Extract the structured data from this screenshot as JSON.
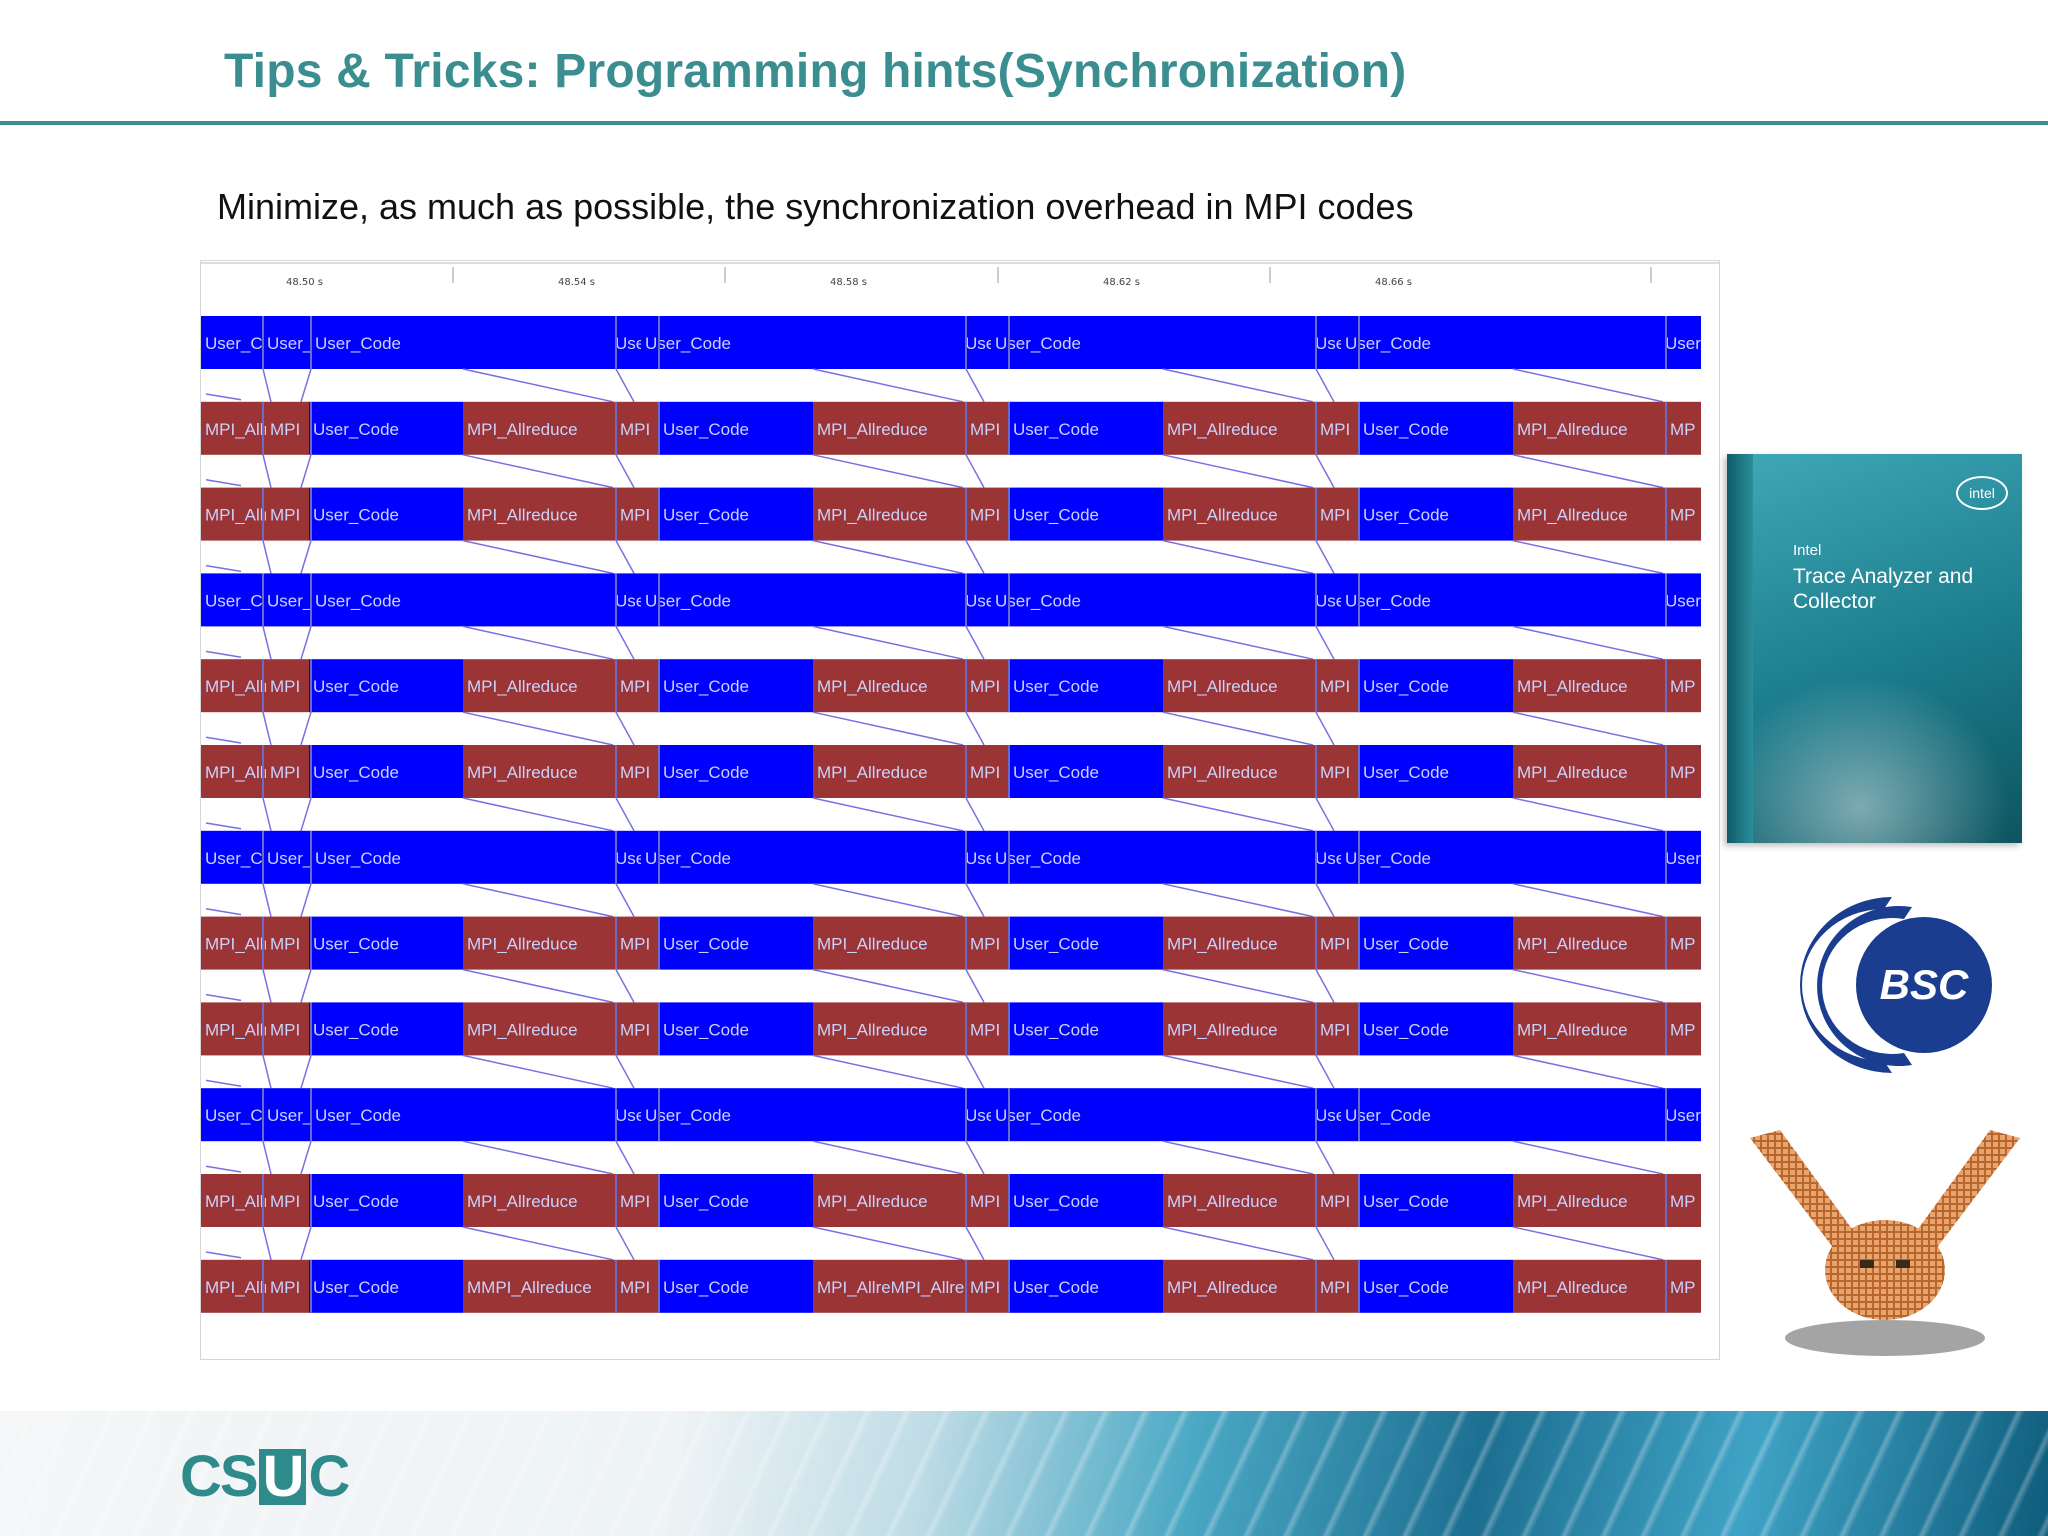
{
  "slide": {
    "title": "Tips & Tricks: Programming hints(Synchronization)",
    "subtitle": "Minimize, as much as possible, the synchronization overhead in MPI codes"
  },
  "trace": {
    "tick_labels": [
      "48.50 s",
      "48.54 s",
      "48.58 s",
      "48.62 s",
      "48.66 s"
    ],
    "colors": {
      "user_code": "#0000ff",
      "mpi_allreduce": "#9b3434",
      "message_line": "#7a6fe0"
    },
    "rows": [
      {
        "type": "root",
        "labels": [
          "User_Co",
          "User_Lo",
          "User_Code",
          "User_Lo",
          "User_Code",
          "User_Lo",
          "User_Code",
          "User_Lo",
          "User_Code",
          "User"
        ]
      },
      {
        "type": "worker",
        "labels": [
          "MPI_Allre",
          "MPI",
          "User_Code",
          "MPI_Allreduce",
          "MPI",
          "User_Code",
          "MPI_Allreduce",
          "MPI",
          "User_Code",
          "MPI_Allreduce",
          "MPI",
          "User_Code",
          "MPI_Allreduce",
          "MP"
        ]
      },
      {
        "type": "worker",
        "labels": [
          "MPI_Allre",
          "MPI",
          "User_Code",
          "MPI_Allreduce",
          "MPI",
          "User_Code",
          "MPI_Allreduce",
          "MPI",
          "User_Code",
          "MPI_Allreduce",
          "MPI",
          "User_Code",
          "MPI_Allreduce",
          "MP"
        ]
      },
      {
        "type": "root",
        "labels": [
          "User_Co",
          "User_Lo",
          "User_Code",
          "User_Lo",
          "User_Code",
          "User_Lo",
          "User_Code",
          "User_Lo",
          "User_Code",
          "User"
        ]
      },
      {
        "type": "worker",
        "labels": [
          "MPI_Allre",
          "MPI",
          "User_Code",
          "MPI_Allreduce",
          "MPI",
          "User_Code",
          "MPI_Allreduce",
          "MPI",
          "User_Code",
          "MPI_Allreduce",
          "MPI",
          "User_Code",
          "MPI_Allreduce",
          "MP"
        ]
      },
      {
        "type": "worker",
        "labels": [
          "MPI_Allre",
          "MPI",
          "User_Code",
          "MPI_Allreduce",
          "MPI",
          "User_Code",
          "MPI_Allreduce",
          "MPI",
          "User_Code",
          "MPI_Allreduce",
          "MPI",
          "User_Code",
          "MPI_Allreduce",
          "MP"
        ]
      },
      {
        "type": "root",
        "labels": [
          "User_Co",
          "User_Lo",
          "User_Code",
          "User_Lo",
          "User_Code",
          "User_Lo",
          "User_Code",
          "User_Lo",
          "User_Code",
          "User"
        ]
      },
      {
        "type": "worker",
        "labels": [
          "MPI_Allre",
          "MPI",
          "User_Code",
          "MPI_Allreduce",
          "MPI",
          "User_Code",
          "MPI_Allreduce",
          "MPI",
          "User_Code",
          "MPI_Allreduce",
          "MPI",
          "User_Code",
          "MPI_Allreduce",
          "MP"
        ]
      },
      {
        "type": "worker",
        "labels": [
          "MPI_Allre",
          "MPI",
          "User_Code",
          "MPI_Allreduce",
          "MPI",
          "User_Code",
          "MPI_Allreduce",
          "MPI",
          "User_Code",
          "MPI_Allreduce",
          "MPI",
          "User_Code",
          "MPI_Allreduce",
          "MP"
        ]
      },
      {
        "type": "root",
        "labels": [
          "User_Co",
          "User_Lo",
          "User_Code",
          "User_Lo",
          "User_Code",
          "User_Lo",
          "User_Code",
          "User_Lo",
          "User_Code",
          "User"
        ]
      },
      {
        "type": "worker",
        "labels": [
          "MPI_Allre",
          "MPI",
          "User_Code",
          "MPI_Allreduce",
          "MPI",
          "User_Code",
          "MPI_Allreduce",
          "MPI",
          "User_Code",
          "MPI_Allreduce",
          "MPI",
          "User_Code",
          "MPI_Allreduce",
          "MP"
        ]
      },
      {
        "type": "worker",
        "labels": [
          "MPI_Allre",
          "MPI",
          "User_Code",
          "MMPI_Allreduce",
          "MPI",
          "User_Code",
          "MPI_AllreMPI_Allred",
          "MPI",
          "User_Code",
          "MPI_Allreduce",
          "MPI",
          "User_Code",
          "MPI_Allreduce",
          "MP"
        ]
      }
    ]
  },
  "logos": {
    "intel": {
      "brand": "intel",
      "name": "Intel",
      "product": "Trace Analyzer and Collector",
      "color": "#1b7c8c"
    },
    "bsc": {
      "text": "BSC",
      "color": "#1a3d8f"
    },
    "owl": {
      "color": "#c8733a"
    },
    "csuc": {
      "prefix": "CS",
      "boxed": "U",
      "suffix": "C",
      "color": "#2f8a8c"
    }
  }
}
